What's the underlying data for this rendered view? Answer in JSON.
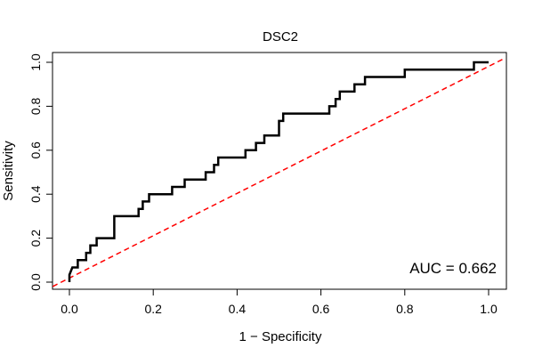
{
  "chart_data": {
    "type": "line",
    "title": "DSC2",
    "xlabel": "1 − Specificity",
    "ylabel": "Sensitivity",
    "xlim": [
      0,
      1
    ],
    "ylim": [
      0,
      1
    ],
    "x_ticks": [
      "0.0",
      "0.2",
      "0.4",
      "0.6",
      "0.8",
      "1.0"
    ],
    "y_ticks": [
      "0.0",
      "0.2",
      "0.4",
      "0.6",
      "0.8",
      "1.0"
    ],
    "annotation": "AUC = 0.662",
    "grid": false,
    "series": [
      {
        "color": "#000000",
        "style": "solid",
        "points": [
          [
            0.0,
            0.0
          ],
          [
            0.0,
            0.033
          ],
          [
            0.007,
            0.067
          ],
          [
            0.02,
            0.067
          ],
          [
            0.02,
            0.1
          ],
          [
            0.04,
            0.1
          ],
          [
            0.04,
            0.133
          ],
          [
            0.05,
            0.133
          ],
          [
            0.05,
            0.167
          ],
          [
            0.065,
            0.167
          ],
          [
            0.065,
            0.2
          ],
          [
            0.085,
            0.2
          ],
          [
            0.107,
            0.2
          ],
          [
            0.107,
            0.3
          ],
          [
            0.165,
            0.3
          ],
          [
            0.165,
            0.333
          ],
          [
            0.175,
            0.333
          ],
          [
            0.175,
            0.367
          ],
          [
            0.19,
            0.367
          ],
          [
            0.19,
            0.4
          ],
          [
            0.245,
            0.4
          ],
          [
            0.245,
            0.433
          ],
          [
            0.275,
            0.433
          ],
          [
            0.275,
            0.467
          ],
          [
            0.325,
            0.467
          ],
          [
            0.325,
            0.5
          ],
          [
            0.345,
            0.5
          ],
          [
            0.345,
            0.533
          ],
          [
            0.355,
            0.533
          ],
          [
            0.355,
            0.567
          ],
          [
            0.42,
            0.567
          ],
          [
            0.42,
            0.6
          ],
          [
            0.445,
            0.6
          ],
          [
            0.445,
            0.633
          ],
          [
            0.465,
            0.633
          ],
          [
            0.465,
            0.667
          ],
          [
            0.5,
            0.667
          ],
          [
            0.5,
            0.733
          ],
          [
            0.51,
            0.733
          ],
          [
            0.51,
            0.767
          ],
          [
            0.62,
            0.767
          ],
          [
            0.62,
            0.8
          ],
          [
            0.635,
            0.8
          ],
          [
            0.635,
            0.833
          ],
          [
            0.645,
            0.833
          ],
          [
            0.645,
            0.867
          ],
          [
            0.68,
            0.867
          ],
          [
            0.68,
            0.9
          ],
          [
            0.705,
            0.9
          ],
          [
            0.705,
            0.933
          ],
          [
            0.8,
            0.933
          ],
          [
            0.8,
            0.967
          ],
          [
            0.965,
            0.967
          ],
          [
            0.965,
            1.0
          ],
          [
            1.0,
            1.0
          ]
        ]
      },
      {
        "color": "#ff0000",
        "style": "dashed",
        "points": [
          [
            -0.04,
            -0.02
          ],
          [
            1.04,
            1.02
          ]
        ]
      }
    ]
  }
}
